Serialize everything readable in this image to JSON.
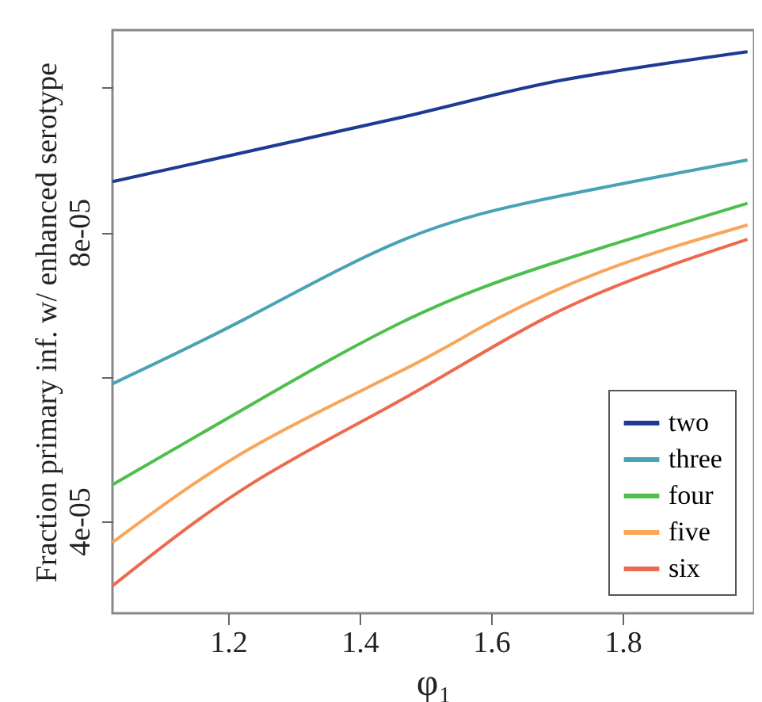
{
  "chart_data": {
    "type": "line",
    "xlabel": "φ₁",
    "ylabel": "Fraction primary inf. w/ enhanced serotype",
    "xlim": [
      1.024,
      2.0
    ],
    "xticks": [
      1.2,
      1.4,
      1.6,
      1.8
    ],
    "ylim": [
      2.72e-05,
      0.000108
    ],
    "yticks": [
      {
        "value": 4e-05,
        "label": "4e-05"
      },
      {
        "value": 6e-05,
        "label": null
      },
      {
        "value": 8e-05,
        "label": "8e-05"
      },
      {
        "value": 0.0001,
        "label": null
      }
    ],
    "grid": false,
    "legend": "bottom right",
    "marker": "none",
    "line_style": "solid",
    "series": [
      {
        "name": "two",
        "color": "#1f3a93",
        "x": [
          1.024,
          1.468,
          1.704,
          1.99
        ],
        "values": [
          8.7e-05,
          9.6e-05,
          0.000101,
          0.000105
        ]
      },
      {
        "name": "three",
        "color": "#4aa3b5",
        "x": [
          1.024,
          1.226,
          1.468,
          1.704,
          1.99
        ],
        "values": [
          5.9e-05,
          6.8e-05,
          7.9e-05,
          8.5e-05,
          9e-05
        ]
      },
      {
        "name": "four",
        "color": "#4dbf4d",
        "x": [
          1.024,
          1.233,
          1.475,
          1.704,
          1.99
        ],
        "values": [
          4.5e-05,
          5.6e-05,
          6.8e-05,
          7.6e-05,
          8.4e-05
        ]
      },
      {
        "name": "five",
        "color": "#f9a55a",
        "x": [
          1.024,
          1.233,
          1.468,
          1.609,
          1.781,
          1.99
        ],
        "values": [
          3.7e-05,
          5e-05,
          6.1e-05,
          6.8e-05,
          7.5e-05,
          8.1e-05
        ]
      },
      {
        "name": "six",
        "color": "#ee6a4f",
        "x": [
          1.024,
          1.233,
          1.468,
          1.68,
          1.861,
          1.99
        ],
        "values": [
          3.1e-05,
          4.5e-05,
          5.7e-05,
          6.8e-05,
          7.5e-05,
          7.9e-05
        ]
      }
    ]
  }
}
